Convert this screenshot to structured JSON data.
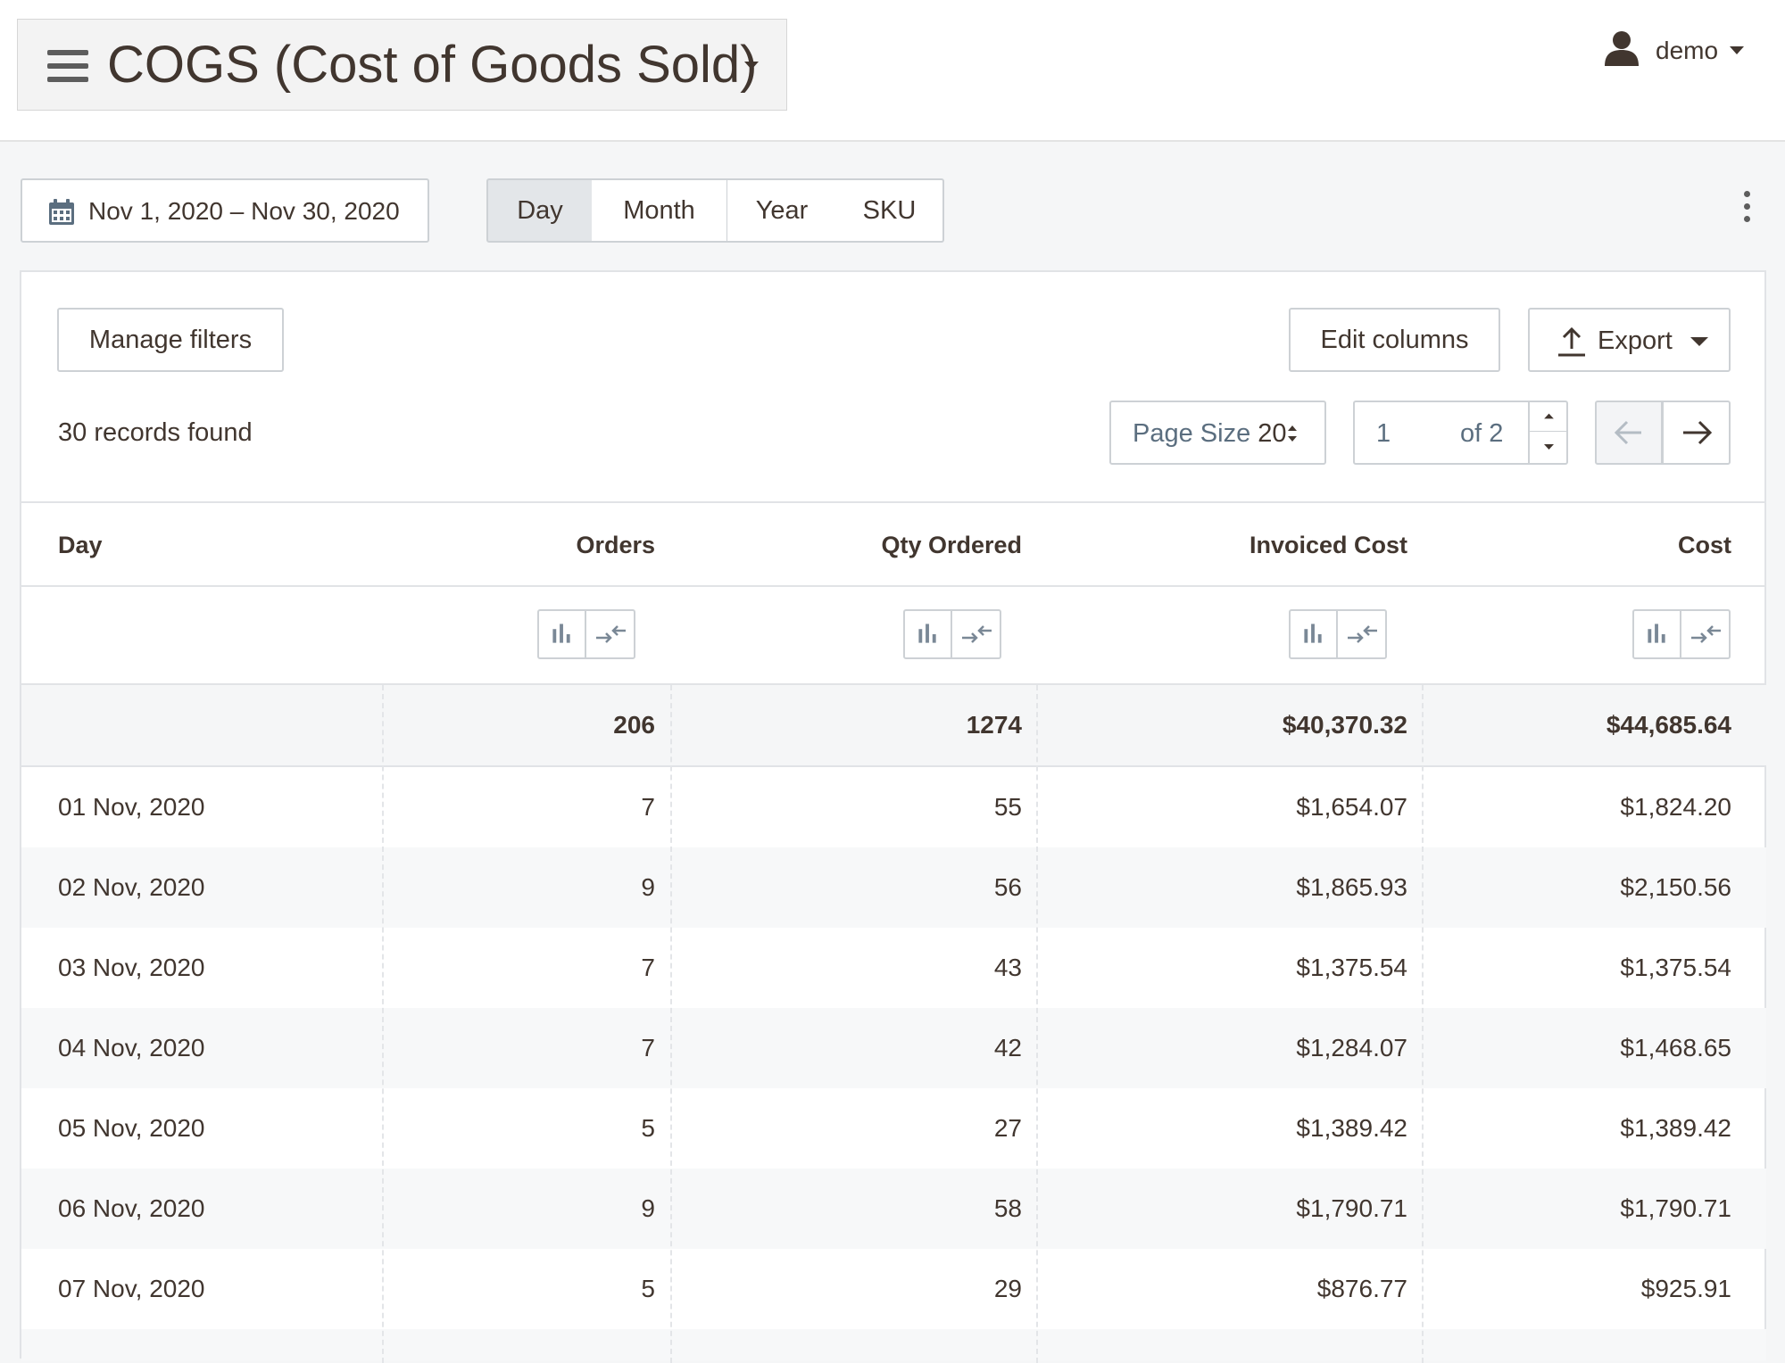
{
  "header": {
    "title": "COGS (Cost of Goods Sold)",
    "user": "demo"
  },
  "toolbar": {
    "date_range": "Nov 1, 2020 – Nov 30, 2020",
    "segments": [
      "Day",
      "Month",
      "Year",
      "SKU"
    ],
    "active_segment": "Day"
  },
  "card": {
    "manage_filters": "Manage filters",
    "edit_columns": "Edit columns",
    "export": "Export",
    "records_found": "30 records found",
    "page_size_label": "Page Size",
    "page_size_value": "20",
    "current_page": "1",
    "page_of": "of 2"
  },
  "table": {
    "columns": [
      "Day",
      "Orders",
      "Qty Ordered",
      "Invoiced Cost",
      "Cost"
    ],
    "totals": {
      "orders": "206",
      "qty": "1274",
      "invoiced_cost": "$40,370.32",
      "cost": "$44,685.64"
    },
    "rows": [
      {
        "day": "01 Nov, 2020",
        "orders": "7",
        "qty": "55",
        "invoiced_cost": "$1,654.07",
        "cost": "$1,824.20"
      },
      {
        "day": "02 Nov, 2020",
        "orders": "9",
        "qty": "56",
        "invoiced_cost": "$1,865.93",
        "cost": "$2,150.56"
      },
      {
        "day": "03 Nov, 2020",
        "orders": "7",
        "qty": "43",
        "invoiced_cost": "$1,375.54",
        "cost": "$1,375.54"
      },
      {
        "day": "04 Nov, 2020",
        "orders": "7",
        "qty": "42",
        "invoiced_cost": "$1,284.07",
        "cost": "$1,468.65"
      },
      {
        "day": "05 Nov, 2020",
        "orders": "5",
        "qty": "27",
        "invoiced_cost": "$1,389.42",
        "cost": "$1,389.42"
      },
      {
        "day": "06 Nov, 2020",
        "orders": "9",
        "qty": "58",
        "invoiced_cost": "$1,790.71",
        "cost": "$1,790.71"
      },
      {
        "day": "07 Nov, 2020",
        "orders": "5",
        "qty": "29",
        "invoiced_cost": "$876.77",
        "cost": "$925.91"
      }
    ]
  },
  "colors": {
    "text": "#41362f",
    "muted": "#5b6e7f",
    "border": "#cdd1d5",
    "active_segment": "#e3e6e9"
  },
  "icons": {
    "menu": "hamburger-icon",
    "user": "user-icon",
    "calendar": "calendar-icon",
    "more": "kebab-icon",
    "export": "upload-icon",
    "chart": "bar-chart-icon",
    "compare": "compare-icon",
    "prev": "arrow-left-icon",
    "next": "arrow-right-icon"
  }
}
